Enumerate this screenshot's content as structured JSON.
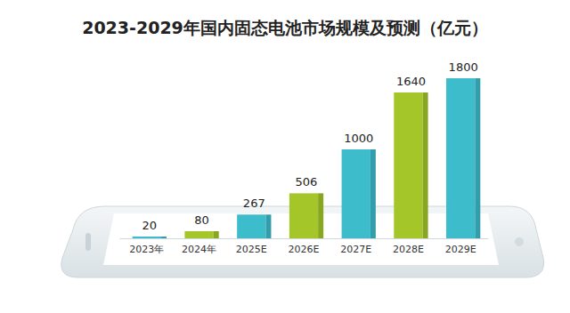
{
  "chart_data": {
    "type": "bar",
    "title": "2023-2029年国内固态电池市场规模及预测（亿元）",
    "categories": [
      "2023年",
      "2024年",
      "2025E",
      "2026E",
      "2027E",
      "2028E",
      "2029E"
    ],
    "values": [
      20,
      80,
      267,
      506,
      1000,
      1640,
      1800
    ],
    "colors": [
      "#3dbdcc",
      "#a4c629",
      "#3dbdcc",
      "#a4c629",
      "#3dbdcc",
      "#a4c629",
      "#3dbdcc"
    ],
    "ylim": [
      0,
      1800
    ],
    "data_labels": true,
    "tick_labels": "x",
    "grid": false
  }
}
